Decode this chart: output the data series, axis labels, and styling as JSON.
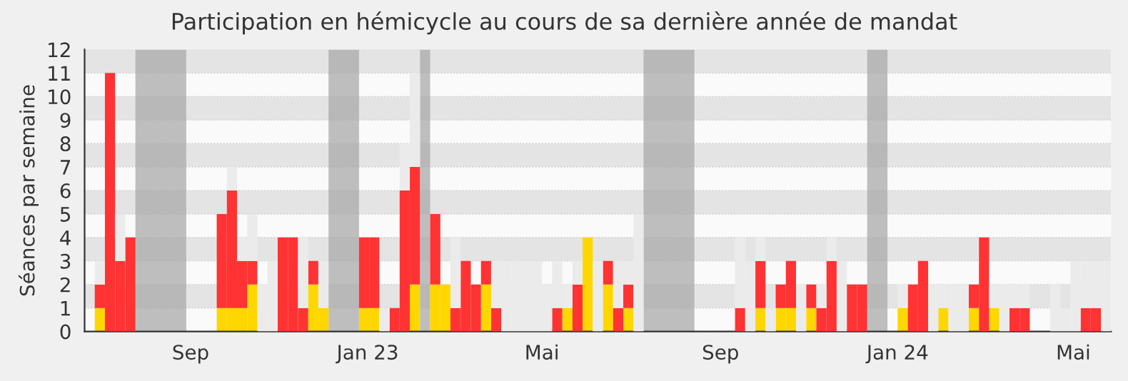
{
  "chart_data": {
    "type": "bar",
    "title": "Participation en hémicycle au cours de sa dernière année de mandat",
    "ylabel": "Séances par semaine",
    "x": [
      "2022-06-27",
      "2022-07-04",
      "2022-07-11",
      "2022-07-18",
      "2022-09-19",
      "2022-09-26",
      "2022-10-03",
      "2022-10-10",
      "2022-10-17",
      "2022-10-24",
      "2022-10-31",
      "2022-11-07",
      "2022-11-14",
      "2022-11-21",
      "2022-11-28",
      "2022-12-26",
      "2023-01-02",
      "2023-01-09",
      "2023-01-16",
      "2023-01-23",
      "2023-01-30",
      "2023-02-13",
      "2023-02-20",
      "2023-02-27",
      "2023-03-06",
      "2023-03-13",
      "2023-03-20",
      "2023-03-27",
      "2023-04-03",
      "2023-04-10",
      "2023-04-17",
      "2023-04-24",
      "2023-05-01",
      "2023-05-08",
      "2023-05-15",
      "2023-05-22",
      "2023-05-29",
      "2023-06-05",
      "2023-06-12",
      "2023-06-19",
      "2023-06-26",
      "2023-07-03",
      "2023-09-11",
      "2023-09-18",
      "2023-09-25",
      "2023-10-02",
      "2023-10-09",
      "2023-10-16",
      "2023-10-23",
      "2023-10-30",
      "2023-11-06",
      "2023-11-13",
      "2023-11-20",
      "2023-11-27",
      "2023-12-04",
      "2024-01-01",
      "2024-01-08",
      "2024-01-15",
      "2024-01-22",
      "2024-01-29",
      "2024-02-05",
      "2024-02-12",
      "2024-02-19",
      "2024-02-26",
      "2024-03-04",
      "2024-03-11",
      "2024-03-18",
      "2024-03-25",
      "2024-04-15",
      "2024-04-22",
      "2024-04-29",
      "2024-05-06",
      "2024-05-13",
      "2024-05-20"
    ],
    "series": [
      {
        "color": "#ffd700",
        "values": [
          1,
          null,
          null,
          null,
          1,
          1,
          1,
          2,
          null,
          null,
          null,
          null,
          null,
          2,
          1,
          1,
          1,
          null,
          null,
          null,
          2,
          2,
          2,
          null,
          null,
          null,
          2,
          null,
          null,
          null,
          null,
          null,
          null,
          null,
          1,
          null,
          4,
          null,
          2,
          null,
          1,
          null,
          null,
          null,
          1,
          null,
          1,
          1,
          null,
          1,
          null,
          null,
          null,
          null,
          null,
          1,
          null,
          null,
          null,
          1,
          null,
          null,
          1,
          null,
          1,
          null,
          null,
          null,
          null,
          null,
          null,
          null,
          null,
          null
        ]
      },
      {
        "color": "#ff3333",
        "values": [
          1,
          11,
          3,
          4,
          4,
          5,
          2,
          1,
          null,
          null,
          4,
          4,
          1,
          1,
          null,
          3,
          3,
          null,
          1,
          6,
          5,
          3,
          null,
          1,
          3,
          2,
          1,
          1,
          null,
          null,
          null,
          null,
          null,
          1,
          null,
          2,
          null,
          null,
          1,
          1,
          1,
          null,
          1,
          null,
          2,
          null,
          1,
          2,
          null,
          1,
          1,
          3,
          null,
          2,
          2,
          null,
          2,
          3,
          null,
          null,
          null,
          null,
          1,
          4,
          null,
          null,
          1,
          1,
          null,
          null,
          null,
          1,
          1,
          null
        ]
      },
      {
        "color": "#ebebeb",
        "values": [
          1,
          null,
          2,
          null,
          null,
          1,
          1,
          2,
          2,
          3,
          null,
          null,
          3,
          null,
          2,
          null,
          null,
          1,
          null,
          2,
          4,
          null,
          null,
          3,
          null,
          null,
          null,
          2,
          3,
          3,
          3,
          3,
          2,
          2,
          1,
          1,
          null,
          3,
          null,
          2,
          1,
          5,
          3,
          3,
          1,
          1,
          null,
          null,
          2,
          null,
          1,
          1,
          3,
          null,
          null,
          1,
          null,
          null,
          2,
          1,
          2,
          2,
          null,
          null,
          1,
          2,
          1,
          1,
          2,
          1,
          3,
          2,
          2,
          3
        ]
      }
    ],
    "stacked": true,
    "bands": [
      {
        "axis": "x",
        "from": "2022-07-25",
        "to": "2022-08-29",
        "color": "#aaaaaa"
      },
      {
        "axis": "x",
        "from": "2022-12-05",
        "to": "2022-12-26",
        "color": "#aaaaaa"
      },
      {
        "axis": "x",
        "from": "2023-02-06",
        "to": "2023-02-13",
        "color": "#aaaaaa"
      },
      {
        "axis": "x",
        "from": "2023-07-10",
        "to": "2023-08-14",
        "color": "#aaaaaa"
      },
      {
        "axis": "x",
        "from": "2023-12-11",
        "to": "2023-12-25",
        "color": "#aaaaaa"
      }
    ],
    "xlim": [
      "2022-06-20",
      "2024-05-27"
    ],
    "xticks": [
      {
        "value": "2022-09-01",
        "label": "Sep"
      },
      {
        "value": "2023-01-01",
        "label": "Jan 23"
      },
      {
        "value": "2023-05-01",
        "label": "Mai"
      },
      {
        "value": "2023-09-01",
        "label": "Sep"
      },
      {
        "value": "2024-01-01",
        "label": "Jan 24"
      },
      {
        "value": "2024-05-01",
        "label": "Mai"
      }
    ],
    "ylim": [
      0,
      12
    ],
    "yticks": [
      0,
      1,
      2,
      3,
      4,
      5,
      6,
      7,
      8,
      9,
      10,
      11,
      12
    ],
    "grid": "y"
  }
}
